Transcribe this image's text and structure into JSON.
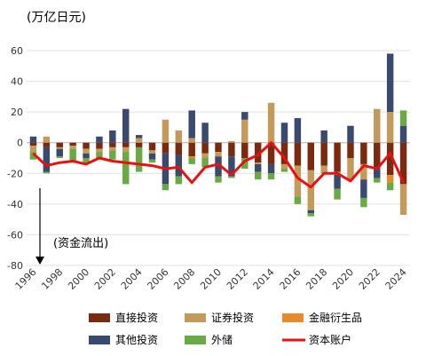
{
  "chart_data": {
    "type": "bar",
    "unit_label": "(万亿日元)",
    "annotation": "(资金流出)",
    "ylim": [
      -80,
      60
    ],
    "yticks": [
      -80,
      -60,
      -40,
      -20,
      0,
      20,
      40,
      60
    ],
    "xticks": [
      "1996",
      "1998",
      "2000",
      "2002",
      "2004",
      "2006",
      "2008",
      "2010",
      "2012",
      "2014",
      "2016",
      "2018",
      "2020",
      "2022",
      "2024"
    ],
    "years": [
      1996,
      1997,
      1998,
      1999,
      2000,
      2001,
      2002,
      2003,
      2004,
      2005,
      2006,
      2007,
      2008,
      2009,
      2010,
      2011,
      2012,
      2013,
      2014,
      2015,
      2016,
      2017,
      2018,
      2019,
      2020,
      2021,
      2022,
      2023,
      2024
    ],
    "series": [
      {
        "name": "直接投资",
        "color": "#7b2a10",
        "values": [
          -2,
          -3,
          -3,
          -2,
          -4,
          -4,
          -3,
          -3,
          -3,
          -5,
          -7,
          -8,
          -9,
          -7,
          -6,
          -9,
          -10,
          -13,
          -14,
          -14,
          -15,
          -18,
          -15,
          -19,
          -10,
          -14,
          -17,
          -21,
          -27
        ]
      },
      {
        "name": "证券投资",
        "color": "#c49a5a",
        "values": [
          -4,
          4,
          -1,
          -2,
          -3,
          -2,
          -2,
          -3,
          3,
          -2,
          15,
          8,
          3,
          -3,
          -3,
          1,
          15,
          -1,
          26,
          -3,
          -20,
          -26,
          -4,
          -2,
          -13,
          -10,
          22,
          20,
          -20
        ]
      },
      {
        "name": "金融衍生品",
        "color": "#e8892a",
        "values": [
          0,
          0,
          0,
          0,
          0,
          0,
          0,
          0,
          0,
          0,
          0,
          0,
          -1,
          0,
          0,
          0,
          0,
          0,
          0,
          0,
          0,
          0,
          0,
          0,
          0,
          0,
          0,
          -5,
          0
        ]
      },
      {
        "name": "其他投资",
        "color": "#3a4a6e",
        "values": [
          4,
          -16,
          -5,
          0,
          -3,
          4,
          8,
          22,
          2,
          -4,
          -20,
          -14,
          18,
          13,
          -13,
          -13,
          5,
          -5,
          -6,
          13,
          16,
          -2,
          8,
          -9,
          11,
          -12,
          -6,
          38,
          11
        ]
      },
      {
        "name": "外储",
        "color": "#6aaa44",
        "values": [
          -5,
          -1,
          -1,
          -9,
          -3,
          -5,
          -6,
          -21,
          -16,
          -2,
          -4,
          -5,
          -4,
          -6,
          -4,
          -1,
          -7,
          -5,
          -4,
          -2,
          -5,
          -2,
          -1,
          -7,
          -1,
          -6,
          -3,
          -5,
          10
        ]
      }
    ],
    "line": {
      "name": "资本账户",
      "color": "#e81010",
      "values": [
        -7,
        -15,
        -13,
        -12,
        -14,
        -10,
        -12,
        -13,
        -14,
        -15,
        -17,
        -16,
        -26,
        -16,
        -14,
        -21,
        -12,
        -8,
        0,
        -10,
        -23,
        -29,
        -20,
        -20,
        -25,
        -15,
        -17,
        -7,
        -26
      ]
    }
  }
}
